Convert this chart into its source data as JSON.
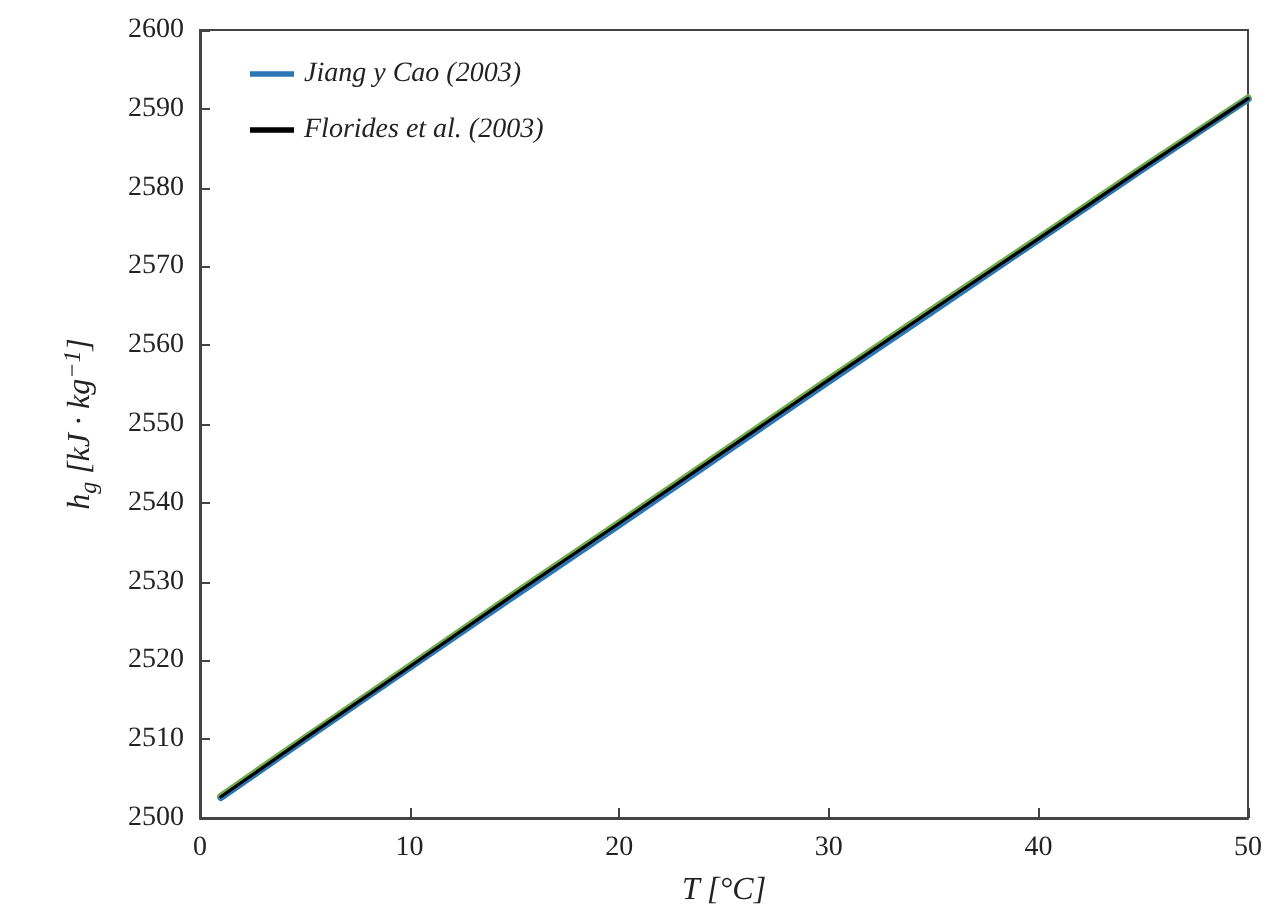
{
  "chart_data": {
    "type": "line",
    "xlabel": "T [°C]",
    "ylabel": "h$_{g}$ [kJ · kg$^{−1}$]",
    "x": [
      1,
      5,
      10,
      15,
      20,
      25,
      30,
      35,
      40,
      45,
      50
    ],
    "series": [
      {
        "color": "#70ad47",
        "values": [
          2502.7,
          2510.1,
          2519.2,
          2528.4,
          2537.4,
          2546.5,
          2555.6,
          2564.6,
          2573.5,
          2582.5,
          2591.3
        ]
      },
      {
        "name": "Jiang y Cao (2003)",
        "color": "#2e75b6",
        "values": [
          2502.5,
          2509.9,
          2519.0,
          2528.1,
          2537.1,
          2546.2,
          2555.3,
          2564.3,
          2573.3,
          2582.3,
          2591.2
        ]
      },
      {
        "name": "Florides et al. (2003)",
        "color": "#000000",
        "values": [
          2502.7,
          2510.1,
          2519.2,
          2528.4,
          2537.4,
          2546.5,
          2555.6,
          2564.6,
          2573.5,
          2582.5,
          2591.3
        ]
      }
    ],
    "xlim": [
      0,
      50
    ],
    "xticks": [
      0,
      10,
      20,
      30,
      40,
      50
    ],
    "ylim": [
      2500,
      2600
    ],
    "yticks": [
      2500,
      2510,
      2520,
      2530,
      2540,
      2550,
      2560,
      2570,
      2580,
      2590,
      2600
    ],
    "grid": false,
    "legend": "top left",
    "marker": "none",
    "line_style": "solid"
  }
}
